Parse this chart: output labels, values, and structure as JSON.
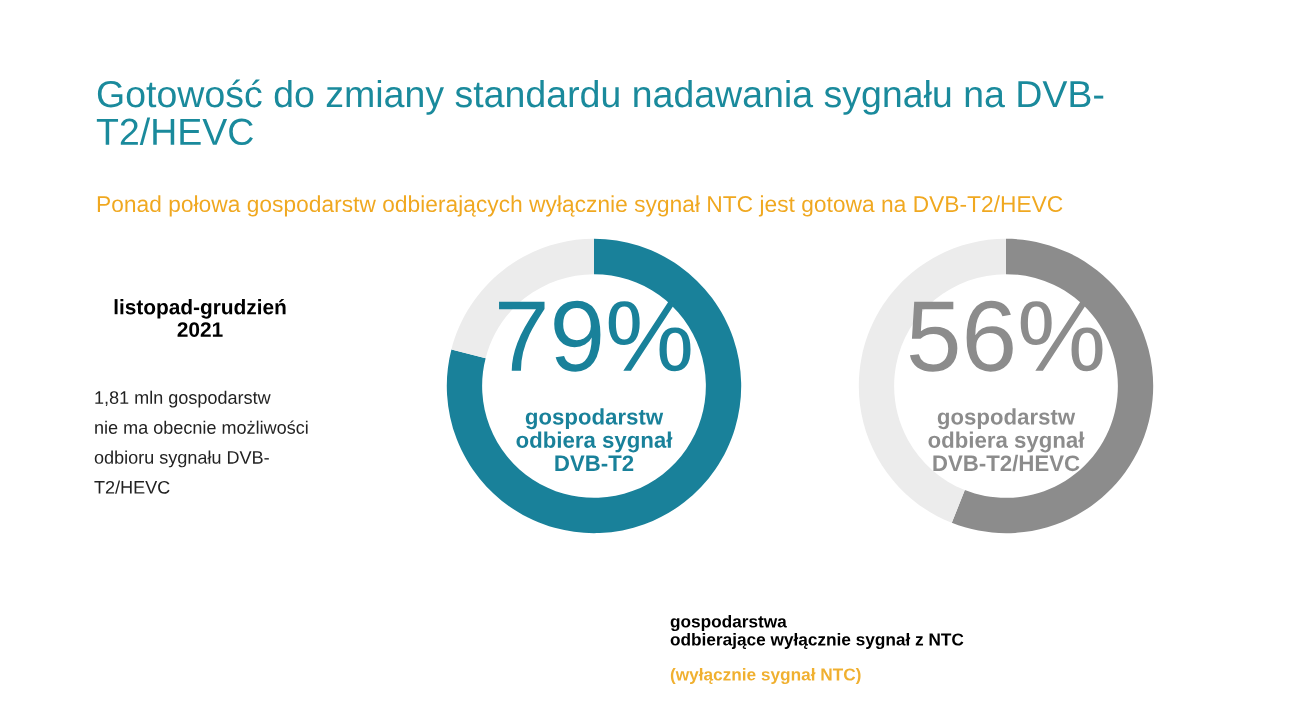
{
  "chart_data": [
    {
      "type": "other",
      "title": "Gotowość do zmiany standardu nadawania sygnału na DVB-\nT2/HEVC",
      "subtitle": "Ponad połowa gospodarstw odbierających wyłącznie sygnał NTC jest gotowa na DVB-T2/HEVC",
      "annotations": [
        "listopad-grudzień\n2021",
        "1,81 mln gospodarstw\nnie ma obecnie możliwości\nodbioru sygnału DVB-\nT2/HEVC",
        "gospodarstwa\nodbierające wyłącznie sygnał z NTC",
        "(wyłącznie sygnał NTC)"
      ]
    },
    {
      "type": "donut",
      "categories": [
        null,
        null
      ],
      "values": [
        79,
        21
      ],
      "colors": [
        "#19819a",
        "#ececec"
      ],
      "value_labels": [
        "79%",
        null
      ],
      "annotations": [
        "gospodarstw\nodbiera sygnał\nDVB-T2"
      ]
    },
    {
      "type": "donut",
      "categories": [
        null,
        null
      ],
      "values": [
        56,
        44
      ],
      "colors": [
        "#8c8c8c",
        "#ececec"
      ],
      "value_labels": [
        "56%",
        null
      ],
      "annotations": [
        "gospodarstw\nodbiera sygnał\nDVB-T2/HEVC"
      ]
    }
  ]
}
